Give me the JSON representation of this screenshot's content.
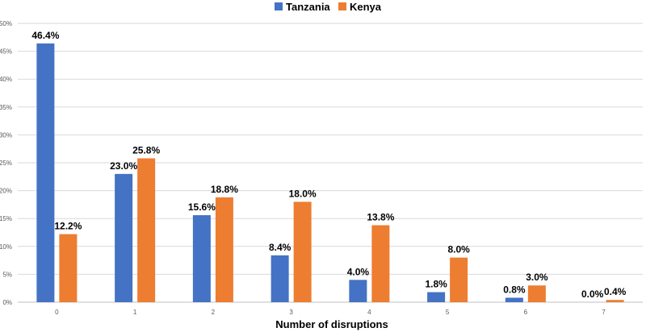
{
  "chart_data": {
    "type": "bar",
    "title": "",
    "xlabel": "Number of disruptions",
    "ylabel": "",
    "ylim": [
      0,
      50
    ],
    "yticks": [
      "0%",
      "5%",
      "10%",
      "15%",
      "20%",
      "25%",
      "30%",
      "35%",
      "40%",
      "45%",
      "50%"
    ],
    "ytick_values": [
      0,
      5,
      10,
      15,
      20,
      25,
      30,
      35,
      40,
      45,
      50
    ],
    "categories": [
      "0",
      "1",
      "2",
      "3",
      "4",
      "5",
      "6",
      "7"
    ],
    "legend_position": "top-center",
    "series": [
      {
        "name": "Tanzania",
        "color": "#4472c4",
        "values": [
          46.4,
          23.0,
          15.6,
          8.4,
          4.0,
          1.8,
          0.8,
          0.0
        ],
        "labels": [
          "46.4%",
          "23.0%",
          "15.6%",
          "8.4%",
          "4.0%",
          "1.8%",
          "0.8%",
          "0.0%"
        ]
      },
      {
        "name": "Kenya",
        "color": "#ed7d31",
        "values": [
          12.2,
          25.8,
          18.8,
          18.0,
          13.8,
          8.0,
          3.0,
          0.4
        ],
        "labels": [
          "12.2%",
          "25.8%",
          "18.8%",
          "18.0%",
          "13.8%",
          "8.0%",
          "3.0%",
          "0.4%"
        ]
      }
    ]
  }
}
